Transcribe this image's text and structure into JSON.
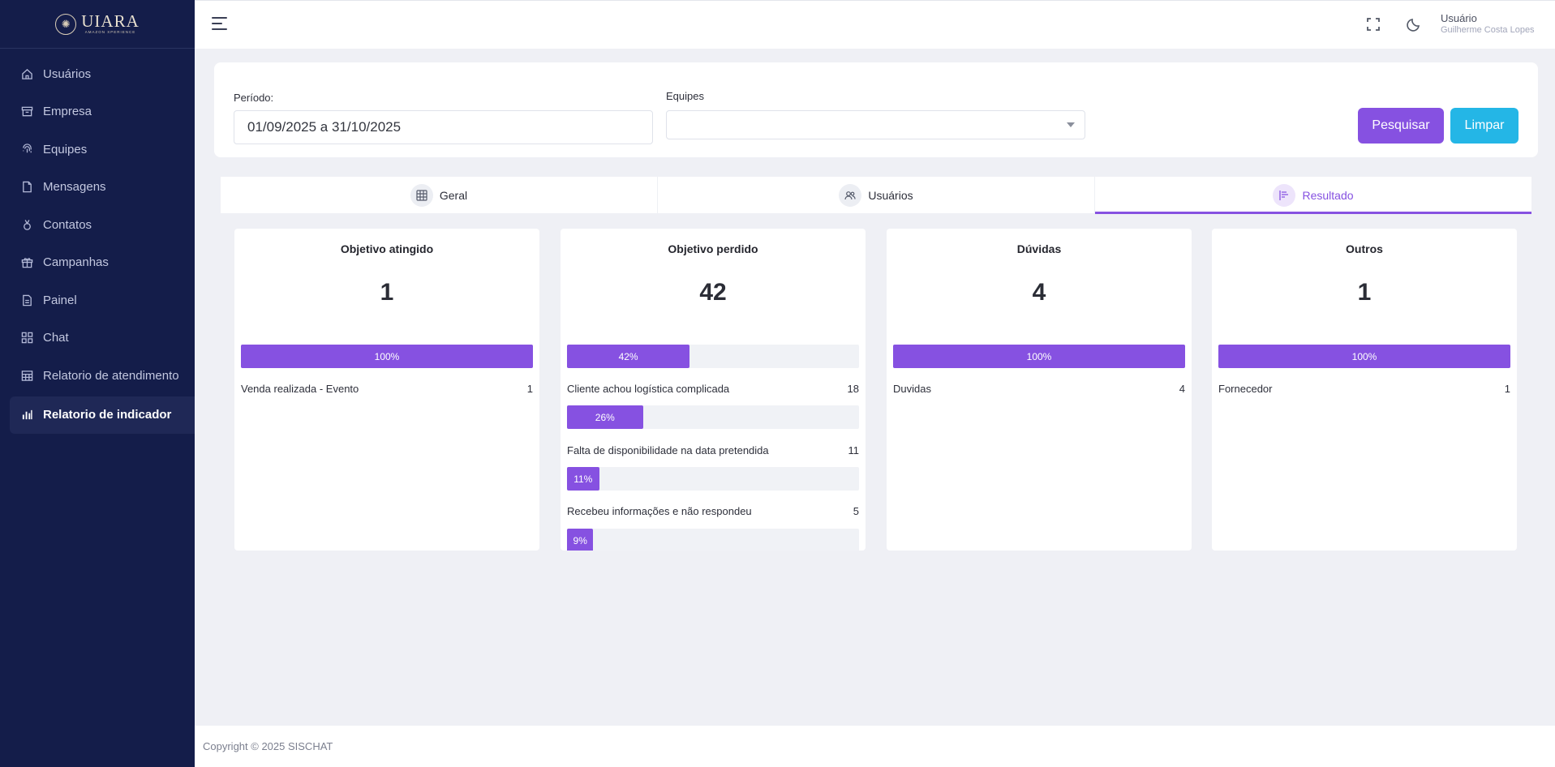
{
  "brand": {
    "name": "UIARA",
    "subtitle": "AMAZON XPERIENCE"
  },
  "sidebar": {
    "items": [
      {
        "label": "Usuários",
        "icon": "home-icon"
      },
      {
        "label": "Empresa",
        "icon": "archive-icon"
      },
      {
        "label": "Equipes",
        "icon": "fingerprint-icon"
      },
      {
        "label": "Mensagens",
        "icon": "file-icon"
      },
      {
        "label": "Contatos",
        "icon": "medal-icon"
      },
      {
        "label": "Campanhas",
        "icon": "gift-icon"
      },
      {
        "label": "Painel",
        "icon": "document-icon"
      },
      {
        "label": "Chat",
        "icon": "grid-icon"
      },
      {
        "label": "Relatorio de atendimento",
        "icon": "table-icon"
      },
      {
        "label": "Relatorio de indicador",
        "icon": "bar-chart-icon",
        "active": true
      }
    ]
  },
  "header": {
    "user_title": "Usuário",
    "user_name": "Guilherme Costa Lopes"
  },
  "filters": {
    "period_label": "Período:",
    "period_value": "01/09/2025 a 31/10/2025",
    "teams_label": "Equipes",
    "teams_value": "",
    "search_button": "Pesquisar",
    "clear_button": "Limpar"
  },
  "tabs": [
    {
      "label": "Geral",
      "icon": "grid-dots-icon"
    },
    {
      "label": "Usuários",
      "icon": "users-icon"
    },
    {
      "label": "Resultado",
      "icon": "chart-bars-icon",
      "active": true
    }
  ],
  "cards": [
    {
      "title": "Objetivo atingido",
      "value": "1",
      "total_bar": {
        "label": "100%",
        "fraction": 1.0
      },
      "items": [
        {
          "label": "Venda realizada - Evento",
          "count": "1"
        }
      ]
    },
    {
      "title": "Objetivo perdido",
      "value": "42",
      "total_bar": {
        "label": "42%",
        "fraction": 0.42
      },
      "items": [
        {
          "label": "Cliente achou logística complicada",
          "count": "18",
          "bar": {
            "label": "26%",
            "fraction": 0.26
          }
        },
        {
          "label": "Falta de disponibilidade na data pretendida",
          "count": "11",
          "bar": {
            "label": "11%",
            "fraction": 0.11
          }
        },
        {
          "label": "Recebeu informações e não respondeu",
          "count": "5",
          "bar": {
            "label": "9%",
            "fraction": 0.09
          }
        }
      ]
    },
    {
      "title": "Dúvidas",
      "value": "4",
      "total_bar": {
        "label": "100%",
        "fraction": 1.0
      },
      "items": [
        {
          "label": "Duvidas",
          "count": "4"
        }
      ]
    },
    {
      "title": "Outros",
      "value": "1",
      "total_bar": {
        "label": "100%",
        "fraction": 1.0
      },
      "items": [
        {
          "label": "Fornecedor",
          "count": "1"
        }
      ]
    }
  ],
  "footer": {
    "copyright": "Copyright © 2025 SISCHAT"
  },
  "colors": {
    "sidebar_bg": "#141d4a",
    "accent": "#8651e1",
    "secondary": "#24b6e6",
    "page_bg": "#eff0f5"
  }
}
